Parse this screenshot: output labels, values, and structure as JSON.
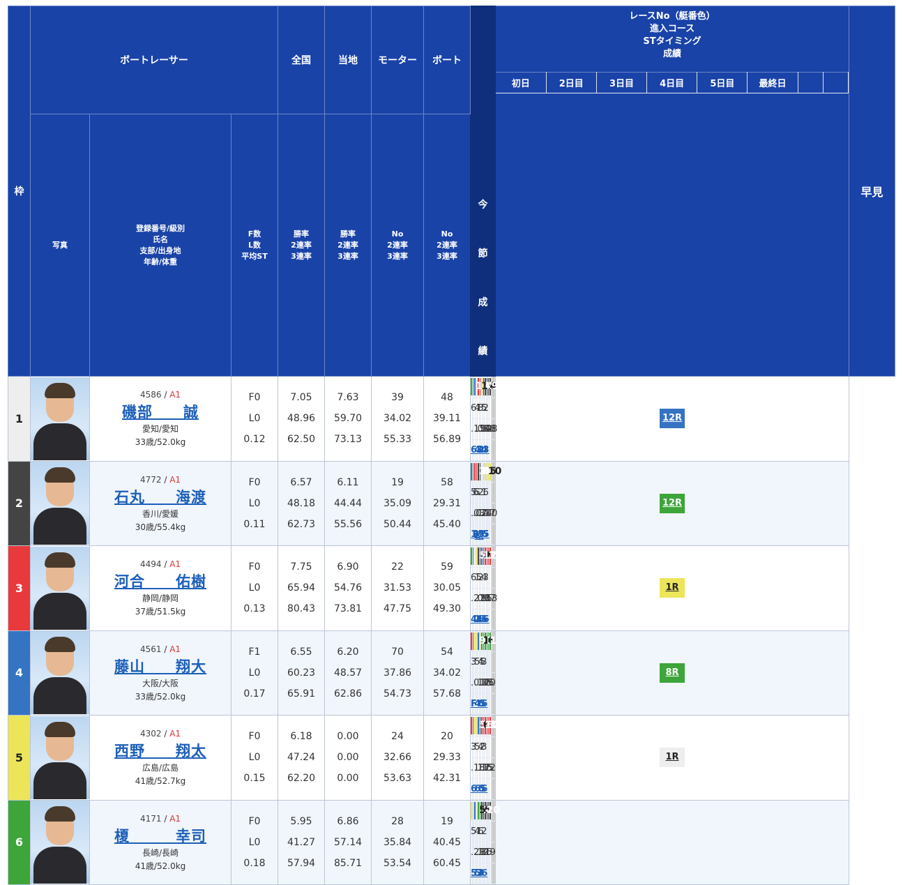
{
  "header": {
    "waku": "枠",
    "racer": "ボートレーサー",
    "zenkoku": "全国",
    "touchi": "当地",
    "motor": "モーター",
    "boat": "ボート",
    "photo": "写真",
    "name_lines": [
      "登録番号/級別",
      "氏名",
      "支部/出身地",
      "年齢/体重"
    ],
    "fl_lines": [
      "F数",
      "L数",
      "平均ST"
    ],
    "rate_lines": [
      "勝率",
      "2連率",
      "3連率"
    ],
    "no_lines": [
      "No",
      "2連率",
      "3連率"
    ],
    "race_lines": [
      "レースNo（艇番色）",
      "進入コース",
      "STタイミング",
      "成績"
    ],
    "hayami": "早見",
    "days": [
      "初日",
      "2日目",
      "3日目",
      "4日目",
      "5日目",
      "最終日"
    ],
    "konsetsu": [
      "今",
      "節",
      "成",
      "績"
    ]
  },
  "racers": [
    {
      "waku": "1",
      "reg": "4586",
      "cls": "A1",
      "name": "磯部　　誠",
      "branch": "愛知/愛知",
      "age": "33歳/52.0kg",
      "f": "F0",
      "l": "L0",
      "st": "0.12",
      "zen": [
        "7.05",
        "48.96",
        "62.50"
      ],
      "tou": [
        "7.63",
        "59.70",
        "73.13"
      ],
      "mot": [
        "39",
        "34.02",
        "55.33"
      ],
      "boat": [
        "48",
        "39.11",
        "56.89"
      ],
      "haya": "12R",
      "haya_color": "c4",
      "races": [
        {
          "r": "12",
          "c": "c6",
          "course": "6",
          "st": ".15",
          "res": "6"
        },
        {
          "r": "",
          "c": "",
          "course": "",
          "st": "",
          "res": ""
        },
        {
          "r": "6",
          "c": "c4",
          "course": "4",
          "st": ".08",
          "res": "4"
        },
        {
          "r": "11",
          "c": "c1",
          "course": "1",
          "st": ".14",
          "res": "3"
        },
        {
          "r": "4",
          "c": "c3",
          "course": "3",
          "st": ".12",
          "res": "2"
        },
        {
          "r": "",
          "c": "",
          "course": "",
          "st": "",
          "res": ""
        },
        {
          "r": "4",
          "c": "c5",
          "course": "5",
          "st": ".08",
          "res": "4"
        },
        {
          "r": "9",
          "c": "c2",
          "course": "2",
          "st": ".08",
          "res": "3"
        },
        {
          "r": "",
          "c": "",
          "course": "",
          "st": "",
          "res": ""
        },
        {
          "r": "",
          "c": "",
          "course": "",
          "st": "",
          "res": ""
        },
        {
          "r": "",
          "c": "",
          "course": "",
          "st": "",
          "res": ""
        },
        {
          "r": "",
          "c": "",
          "course": "",
          "st": "",
          "res": ""
        }
      ]
    },
    {
      "waku": "2",
      "reg": "4772",
      "cls": "A1",
      "name": "石丸　　海渡",
      "branch": "香川/愛媛",
      "age": "30歳/55.4kg",
      "f": "F0",
      "l": "L0",
      "st": "0.11",
      "zen": [
        "6.57",
        "48.18",
        "62.73"
      ],
      "tou": [
        "6.11",
        "44.44",
        "55.56"
      ],
      "mot": [
        "19",
        "35.09",
        "50.44"
      ],
      "boat": [
        "58",
        "29.31",
        "45.40"
      ],
      "haya": "12R",
      "haya_color": "c6",
      "races": [
        {
          "r": "2",
          "c": "c4",
          "course": "5",
          "st": ".03",
          "res": "1"
        },
        {
          "r": "8",
          "c": "c6",
          "course": "6",
          "st": ".07",
          "res": "3"
        },
        {
          "r": "8",
          "c": "c3",
          "course": "5",
          "st": ".14",
          "res": "転"
        },
        {
          "r": "",
          "c": "",
          "course": "",
          "st": "",
          "res": ""
        },
        {
          "r": "4",
          "c": "c2",
          "course": "2",
          "st": ".24",
          "res": "5"
        },
        {
          "r": "",
          "c": "",
          "course": "",
          "st": "",
          "res": ""
        },
        {
          "r": "5",
          "c": "c1",
          "course": "1",
          "st": ".17",
          "res": "6"
        },
        {
          "r": "10",
          "c": "c5",
          "course": "6",
          "st": ".10",
          "res": "5"
        },
        {
          "r": "",
          "c": "",
          "course": "",
          "st": "",
          "res": ""
        },
        {
          "r": "",
          "c": "",
          "course": "",
          "st": "",
          "res": ""
        },
        {
          "r": "",
          "c": "",
          "course": "",
          "st": "",
          "res": ""
        },
        {
          "r": "",
          "c": "",
          "course": "",
          "st": "",
          "res": ""
        }
      ]
    },
    {
      "waku": "3",
      "reg": "4494",
      "cls": "A1",
      "name": "河合　　佑樹",
      "branch": "静岡/静岡",
      "age": "37歳/51.5kg",
      "f": "F0",
      "l": "L0",
      "st": "0.13",
      "zen": [
        "7.75",
        "65.94",
        "80.43"
      ],
      "tou": [
        "6.90",
        "54.76",
        "73.81"
      ],
      "mot": [
        "22",
        "31.53",
        "47.75"
      ],
      "boat": [
        "59",
        "30.05",
        "49.30"
      ],
      "haya": "1R",
      "haya_color": "c5",
      "races": [
        {
          "r": "5",
          "c": "c6",
          "course": "6",
          "st": ".27",
          "res": "4"
        },
        {
          "r": "",
          "c": "",
          "course": "",
          "st": "",
          "res": ""
        },
        {
          "r": "2",
          "c": "c1",
          "course": "1",
          "st": ".09",
          "res": "1"
        },
        {
          "r": "7",
          "c": "c5",
          "course": "5",
          "st": ".18",
          "res": "4"
        },
        {
          "r": "12",
          "c": "c2",
          "course": "2",
          "st": ".15",
          "res": "6"
        },
        {
          "r": "",
          "c": "",
          "course": "",
          "st": "",
          "res": ""
        },
        {
          "r": "7",
          "c": "c4",
          "course": "4",
          "st": ".07",
          "res": "5"
        },
        {
          "r": "11",
          "c": "c3",
          "course": "3",
          "st": ".13",
          "res": "6"
        },
        {
          "r": "",
          "c": "",
          "course": "",
          "st": "",
          "res": ""
        },
        {
          "r": "",
          "c": "",
          "course": "",
          "st": "",
          "res": ""
        },
        {
          "r": "",
          "c": "",
          "course": "",
          "st": "",
          "res": ""
        },
        {
          "r": "",
          "c": "",
          "course": "",
          "st": "",
          "res": ""
        }
      ]
    },
    {
      "waku": "4",
      "reg": "4561",
      "cls": "A1",
      "name": "藤山　　翔大",
      "branch": "大阪/大阪",
      "age": "33歳/52.0kg",
      "f": "F1",
      "l": "L0",
      "st": "0.17",
      "zen": [
        "6.55",
        "60.23",
        "65.91"
      ],
      "tou": [
        "6.20",
        "48.57",
        "62.86"
      ],
      "mot": [
        "70",
        "37.86",
        "54.73"
      ],
      "boat": [
        "54",
        "34.02",
        "57.68"
      ],
      "haya": "8R",
      "haya_color": "c6",
      "races": [
        {
          "r": "9",
          "c": "c3",
          "course": "3",
          "st": ".01",
          "res": "F"
        },
        {
          "r": "",
          "c": "",
          "course": "",
          "st": "",
          "res": ""
        },
        {
          "r": "1",
          "c": "c5",
          "course": "5",
          "st": ".14",
          "res": "4"
        },
        {
          "r": "",
          "c": "",
          "course": "",
          "st": "",
          "res": ""
        },
        {
          "r": "1",
          "c": "c4",
          "course": "4",
          "st": ".15",
          "res": "6"
        },
        {
          "r": "6",
          "c": "c5",
          "course": "5",
          "st": ".16",
          "res": "5"
        },
        {
          "r": "1",
          "c": "c6",
          "course": "3",
          "st": ".20",
          "res": "6"
        },
        {
          "r": "",
          "c": "",
          "course": "",
          "st": "",
          "res": ""
        },
        {
          "r": "",
          "c": "",
          "course": "",
          "st": "",
          "res": ""
        },
        {
          "r": "",
          "c": "",
          "course": "",
          "st": "",
          "res": ""
        },
        {
          "r": "",
          "c": "",
          "course": "",
          "st": "",
          "res": ""
        },
        {
          "r": "",
          "c": "",
          "course": "",
          "st": "",
          "res": ""
        }
      ]
    },
    {
      "waku": "5",
      "reg": "4302",
      "cls": "A1",
      "name": "西野　　翔太",
      "branch": "広島/広島",
      "age": "41歳/52.7kg",
      "f": "F0",
      "l": "L0",
      "st": "0.15",
      "zen": [
        "6.18",
        "47.24",
        "62.20"
      ],
      "tou": [
        "0.00",
        "0.00",
        "0.00"
      ],
      "mot": [
        "24",
        "32.66",
        "53.63"
      ],
      "boat": [
        "20",
        "29.33",
        "42.31"
      ],
      "haya": "1R",
      "haya_color": "c1",
      "races": [
        {
          "r": "5",
          "c": "c3",
          "course": "3",
          "st": ".18",
          "res": "6"
        },
        {
          "r": "",
          "c": "",
          "course": "",
          "st": "",
          "res": ""
        },
        {
          "r": "6",
          "c": "c5",
          "course": "5",
          "st": ".13",
          "res": "6"
        },
        {
          "r": "",
          "c": "",
          "course": "",
          "st": "",
          "res": ""
        },
        {
          "r": "6",
          "c": "c4",
          "course": "4",
          "st": ".15",
          "res": "6"
        },
        {
          "r": "10",
          "c": "c2",
          "course": "2",
          "st": ".15",
          "res": "5"
        },
        {
          "r": "3",
          "c": "c3",
          "course": "3",
          "st": ".22",
          "res": "6"
        },
        {
          "r": "",
          "c": "",
          "course": "",
          "st": "",
          "res": ""
        },
        {
          "r": "",
          "c": "",
          "course": "",
          "st": "",
          "res": ""
        },
        {
          "r": "",
          "c": "",
          "course": "",
          "st": "",
          "res": ""
        },
        {
          "r": "",
          "c": "",
          "course": "",
          "st": "",
          "res": ""
        },
        {
          "r": "",
          "c": "",
          "course": "",
          "st": "",
          "res": ""
        }
      ]
    },
    {
      "waku": "6",
      "reg": "4171",
      "cls": "A1",
      "name": "榎　　　幸司",
      "branch": "長崎/長崎",
      "age": "41歳/52.0kg",
      "f": "F0",
      "l": "L0",
      "st": "0.18",
      "zen": [
        "5.95",
        "41.27",
        "57.94"
      ],
      "tou": [
        "6.86",
        "57.14",
        "85.71"
      ],
      "mot": [
        "28",
        "35.84",
        "53.54"
      ],
      "boat": [
        "19",
        "40.45",
        "60.45"
      ],
      "haya": "",
      "haya_color": "",
      "races": [
        {
          "r": "5",
          "c": "c5",
          "course": "5",
          "st": ".29",
          "res": "5"
        },
        {
          "r": "",
          "c": "",
          "course": "",
          "st": "",
          "res": ""
        },
        {
          "r": "1",
          "c": "c4",
          "course": "4",
          "st": ".12",
          "res": "5"
        },
        {
          "r": "5",
          "c": "c1",
          "course": "1",
          "st": ".11",
          "res": "3"
        },
        {
          "r": "2",
          "c": "c6",
          "course": "6",
          "st": ".35",
          "res": "3"
        },
        {
          "r": "",
          "c": "",
          "course": "",
          "st": "",
          "res": ""
        },
        {
          "r": "10",
          "c": "c2",
          "course": "2",
          "st": ".19",
          "res": "6"
        },
        {
          "r": "",
          "c": "",
          "course": "",
          "st": "",
          "res": ""
        },
        {
          "r": "",
          "c": "",
          "course": "",
          "st": "",
          "res": ""
        },
        {
          "r": "",
          "c": "",
          "course": "",
          "st": "",
          "res": ""
        },
        {
          "r": "",
          "c": "",
          "course": "",
          "st": "",
          "res": ""
        },
        {
          "r": "",
          "c": "",
          "course": "",
          "st": "",
          "res": ""
        }
      ]
    }
  ]
}
